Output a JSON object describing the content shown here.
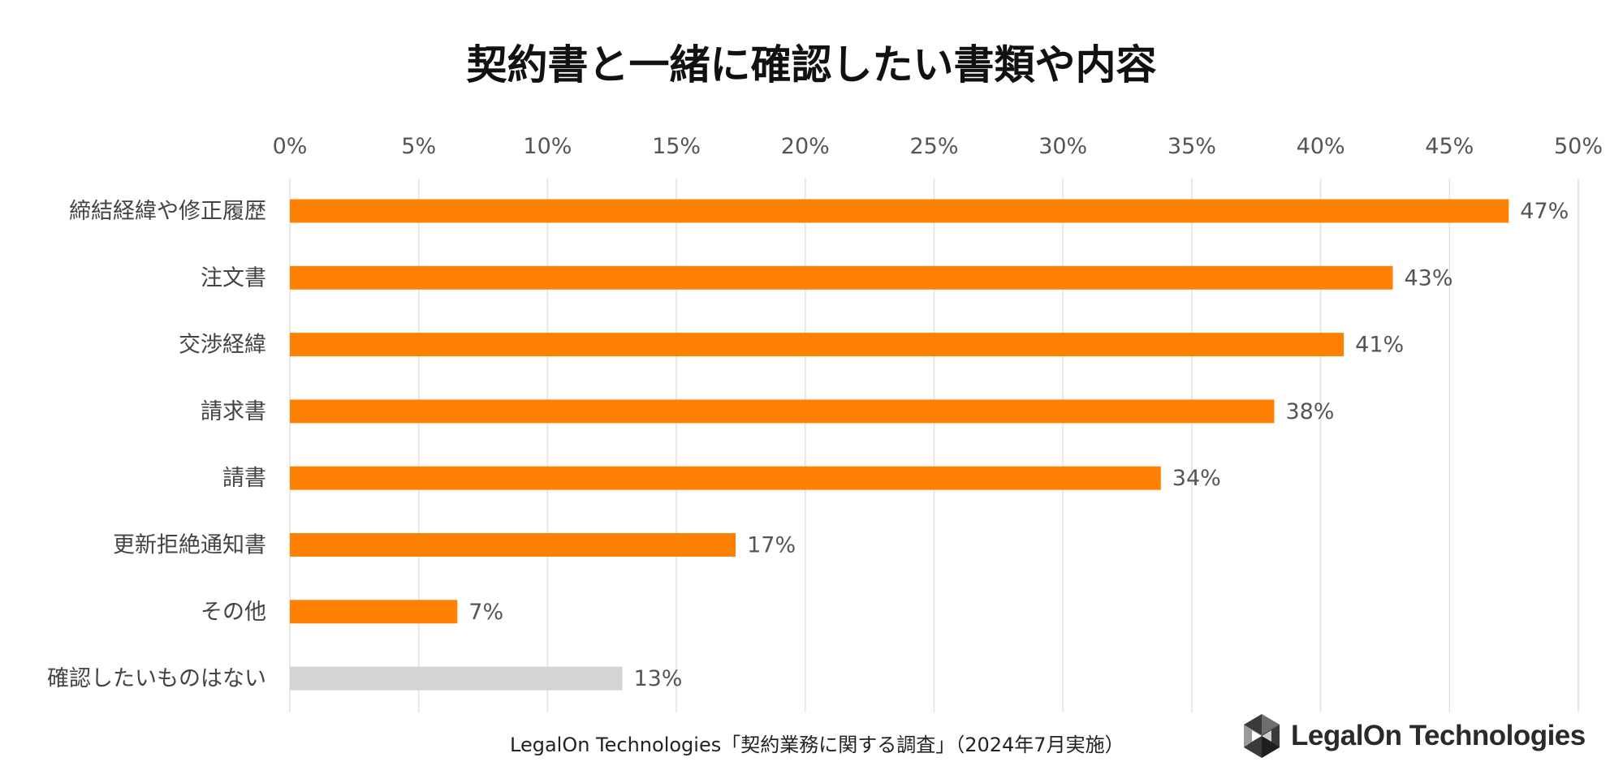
{
  "title": "契約書と一緒に確認したい書類や内容",
  "footer": "LegalOn Technologies「契約業務に関する調査」（2024年7月実施）",
  "logo_text": "LegalOn Technologies",
  "colors": {
    "primary_bar": "#FF8103",
    "other_bar": "#D4D4D4",
    "grid": "#E2E2E2"
  },
  "chart_data": {
    "type": "bar",
    "orientation": "horizontal",
    "title": "契約書と一緒に確認したい書類や内容",
    "xlim": [
      0,
      50
    ],
    "x_ticks": [
      "0%",
      "5%",
      "10%",
      "15%",
      "20%",
      "25%",
      "30%",
      "35%",
      "40%",
      "45%",
      "50%"
    ],
    "x_axis_position": "top",
    "grid": true,
    "categories": [
      "締結経緯や修正履歴",
      "注文書",
      "交渉経緯",
      "請求書",
      "請書",
      "更新拒絶通知書",
      "その他",
      "確認したいものはない"
    ],
    "values": [
      47.3,
      42.8,
      40.9,
      38.2,
      33.8,
      17.3,
      6.5,
      12.9
    ],
    "value_labels": [
      "47%",
      "43%",
      "41%",
      "38%",
      "34%",
      "17%",
      "7%",
      "13%"
    ],
    "bar_colors": [
      "#FF8103",
      "#FF8103",
      "#FF8103",
      "#FF8103",
      "#FF8103",
      "#FF8103",
      "#FF8103",
      "#D4D4D4"
    ]
  }
}
